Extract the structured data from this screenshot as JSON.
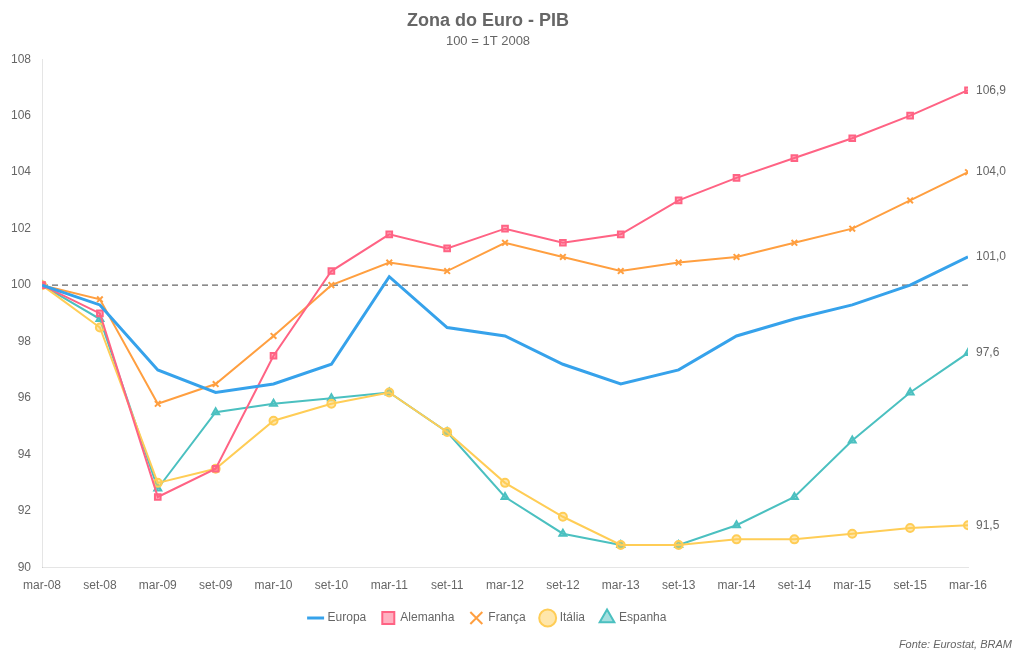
{
  "chart_data": {
    "type": "line",
    "title": "Zona do Euro - PIB",
    "subtitle": "100 = 1T 2008",
    "source": "Fonte: Eurostat, BRAM",
    "categories": [
      "mar-08",
      "set-08",
      "mar-09",
      "set-09",
      "mar-10",
      "set-10",
      "mar-11",
      "set-11",
      "mar-12",
      "set-12",
      "mar-13",
      "set-13",
      "mar-14",
      "set-14",
      "mar-15",
      "set-15",
      "mar-16"
    ],
    "series": [
      {
        "name": "Europa",
        "marker": "none",
        "values": [
          100.0,
          99.3,
          97.0,
          96.2,
          96.5,
          97.2,
          100.3,
          98.5,
          98.2,
          97.2,
          96.5,
          97.0,
          98.2,
          98.8,
          99.3,
          100.0,
          101.0
        ]
      },
      {
        "name": "Alemanha",
        "marker": "square",
        "values": [
          100.0,
          99.0,
          92.5,
          93.5,
          97.5,
          100.5,
          101.8,
          101.3,
          102.0,
          101.5,
          101.8,
          103.0,
          103.8,
          104.5,
          105.2,
          106.0,
          106.9
        ]
      },
      {
        "name": "França",
        "marker": "x",
        "values": [
          100.0,
          99.5,
          95.8,
          96.5,
          98.2,
          100.0,
          100.8,
          100.5,
          101.5,
          101.0,
          100.5,
          100.8,
          101.0,
          101.5,
          102.0,
          103.0,
          104.0
        ]
      },
      {
        "name": "Itália",
        "marker": "circle",
        "values": [
          100.0,
          98.5,
          93.0,
          93.5,
          95.2,
          95.8,
          96.2,
          94.8,
          93.0,
          91.8,
          90.8,
          90.8,
          91.0,
          91.0,
          91.2,
          91.4,
          91.5
        ]
      },
      {
        "name": "Espanha",
        "marker": "triangle",
        "values": [
          100.0,
          98.8,
          92.8,
          95.5,
          95.8,
          96.0,
          96.2,
          94.8,
          92.5,
          91.2,
          90.8,
          90.8,
          91.5,
          92.5,
          94.5,
          96.2,
          97.6
        ]
      }
    ],
    "ylim": [
      90,
      108
    ],
    "yticks": [
      90,
      92,
      94,
      96,
      98,
      100,
      102,
      104,
      106,
      108
    ],
    "grid": false,
    "legend": "bottom",
    "annotations": [
      {
        "text": "106,9",
        "y": 106.9
      },
      {
        "text": "104,0",
        "y": 104.0
      },
      {
        "text": "101,0",
        "y": 101.0
      },
      {
        "text": "97,6",
        "y": 97.6
      },
      {
        "text": "91,5",
        "y": 91.5
      }
    ],
    "reference_line": {
      "y": 100,
      "line_style": "dashed"
    }
  }
}
